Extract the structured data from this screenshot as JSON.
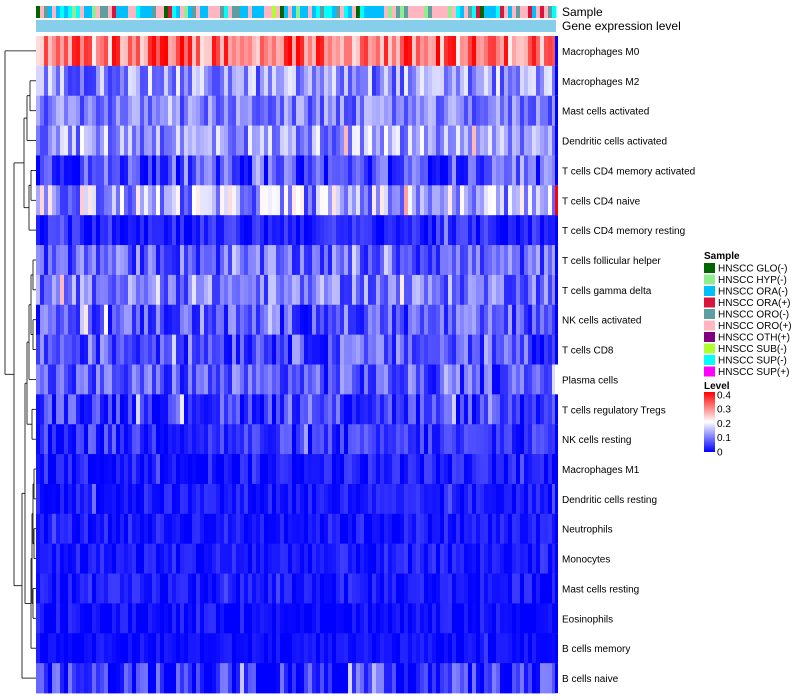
{
  "chart_data": {
    "type": "heatmap",
    "annotation_rows": [
      "Sample",
      "Gene expression level"
    ],
    "row_labels": [
      "Macrophages M0",
      "Macrophages M2",
      "Mast cells activated",
      "Dendritic cells activated",
      "T cells CD4 memory activated",
      "T cells CD4 naive",
      "T cells CD4 memory resting",
      "T cells follicular helper",
      "T cells gamma delta",
      "NK cells activated",
      "T cells CD8",
      "Plasma cells",
      "T cells regulatory  Tregs",
      "NK cells resting",
      "Macrophages M1",
      "Dendritic cells resting",
      "Neutrophils",
      "Monocytes",
      "Mast cells resting",
      "Eosinophils",
      "B cells memory",
      "B cells naive"
    ],
    "row_mean_levels": [
      0.32,
      0.12,
      0.1,
      0.13,
      0.06,
      0.14,
      0.03,
      0.08,
      0.1,
      0.07,
      0.07,
      0.07,
      0.05,
      0.04,
      0.02,
      0.02,
      0.02,
      0.02,
      0.02,
      0.01,
      0.01,
      0.04
    ],
    "row_level_spread": [
      0.1,
      0.08,
      0.06,
      0.08,
      0.07,
      0.1,
      0.04,
      0.07,
      0.07,
      0.07,
      0.07,
      0.07,
      0.06,
      0.05,
      0.04,
      0.03,
      0.03,
      0.03,
      0.03,
      0.03,
      0.02,
      0.07
    ],
    "n_columns": 130,
    "sample_groups": [
      {
        "label": "HNSCC GLO(-)",
        "color": "#006400"
      },
      {
        "label": "HNSCC HYP(-)",
        "color": "#90EE90"
      },
      {
        "label": "HNSCC ORA(-)",
        "color": "#00BFFF"
      },
      {
        "label": "HNSCC ORA(+)",
        "color": "#DC143C"
      },
      {
        "label": "HNSCC ORO(-)",
        "color": "#5F9EA0"
      },
      {
        "label": "HNSCC ORO(+)",
        "color": "#FFB6C1"
      },
      {
        "label": "HNSCC OTH(+)",
        "color": "#800080"
      },
      {
        "label": "HNSCC SUB(-)",
        "color": "#ADFF2F"
      },
      {
        "label": "HNSCC SUP(-)",
        "color": "#00FFFF"
      },
      {
        "label": "HNSCC SUP(+)",
        "color": "#FF00FF"
      }
    ],
    "gene_expression_level_color": "#87CEEB",
    "legend": {
      "sample_title": "Sample",
      "level_title": "Level",
      "level_ticks": [
        "0.4",
        "0.3",
        "0.2",
        "0.1",
        "0"
      ],
      "level_range": [
        0,
        0.42
      ],
      "colors": {
        "low": "#0000FF",
        "mid": "#FFFFFF",
        "high": "#FF0000"
      },
      "placement": "right"
    },
    "dendrogram": "rows, left side"
  }
}
